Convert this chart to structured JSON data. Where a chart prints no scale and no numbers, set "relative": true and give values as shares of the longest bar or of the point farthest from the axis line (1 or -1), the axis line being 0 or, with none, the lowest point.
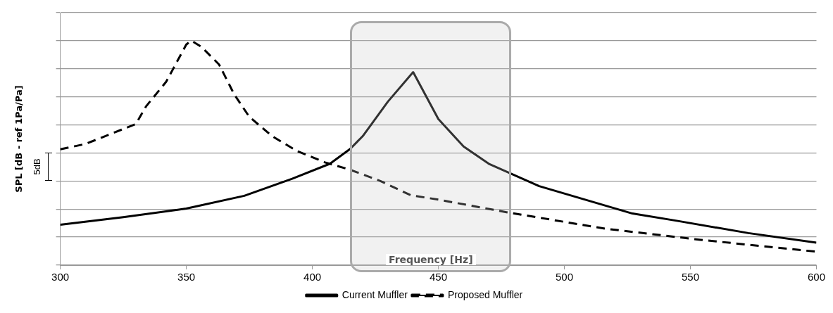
{
  "chart_data": {
    "type": "line",
    "xlabel": "Frequency [Hz]",
    "ylabel": "SPL [dB - ref 1Pa/Pa]",
    "relative": true,
    "grid": "y",
    "legend": "bottom",
    "marker": "none",
    "xlim": [
      300,
      600
    ],
    "xticks": [
      300,
      350,
      400,
      450,
      500,
      550,
      600
    ],
    "annotations": [
      "5dB"
    ],
    "series": [
      {
        "name": "Current Muffler",
        "color": "#000000",
        "line_style": "solid",
        "x": [
          300,
          325,
          350,
          373,
          392,
          407,
          415,
          420,
          430,
          440,
          450,
          460,
          470,
          490,
          527,
          545,
          573,
          600
        ],
        "values": [
          0.18,
          0.214,
          0.252,
          0.309,
          0.385,
          0.452,
          0.518,
          0.575,
          0.729,
          0.86,
          0.651,
          0.529,
          0.452,
          0.352,
          0.23,
          0.197,
          0.143,
          0.1
        ]
      },
      {
        "name": "Proposed Muffler",
        "color": "#000000",
        "line_style": "dashed",
        "x": [
          300,
          310,
          330,
          334,
          342,
          350,
          352,
          356,
          363,
          369,
          375,
          384,
          394,
          405,
          415,
          427,
          439,
          450,
          477,
          516,
          554,
          600
        ],
        "values": [
          0.516,
          0.54,
          0.629,
          0.707,
          0.817,
          0.983,
          1,
          0.973,
          0.894,
          0.761,
          0.661,
          0.575,
          0.508,
          0.458,
          0.425,
          0.375,
          0.312,
          0.292,
          0.236,
          0.163,
          0.113,
          0.06
        ]
      }
    ]
  }
}
